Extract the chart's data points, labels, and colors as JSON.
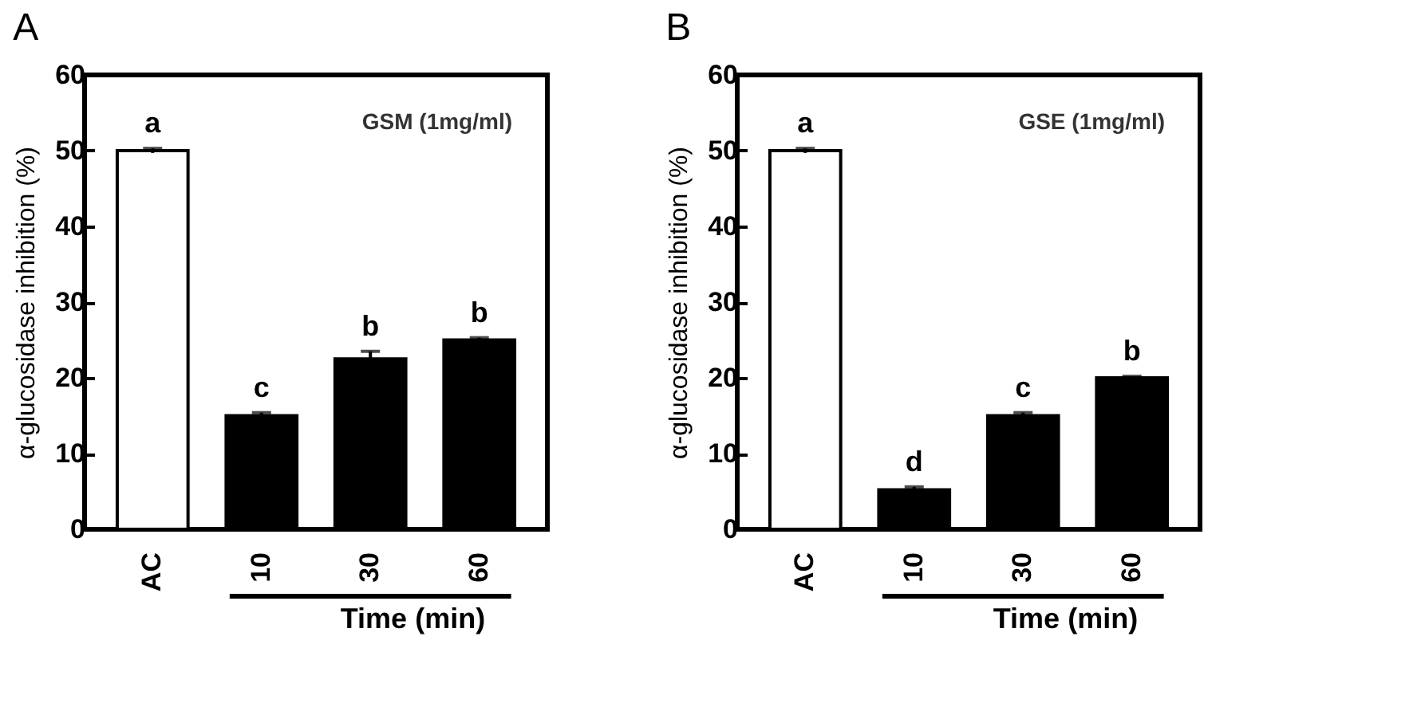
{
  "chart_data": [
    {
      "type": "bar",
      "title": "A",
      "ylabel": "α-glucosidase inhibition (%)",
      "xlabel": "Time (min)",
      "categories": [
        "AC",
        "10",
        "30",
        "60"
      ],
      "values": [
        50,
        15,
        22.5,
        25
      ],
      "errors": [
        0.3,
        0.4,
        1,
        0.3
      ],
      "colors": [
        "#ffffff",
        "#000000",
        "#000000",
        "#000000"
      ],
      "ylim": [
        0,
        60
      ],
      "yticks": [
        0,
        10,
        20,
        30,
        40,
        50,
        60
      ],
      "grid": false,
      "annotations": [
        {
          "text": "a",
          "x": "AC",
          "y": 50
        },
        {
          "text": "c",
          "x": "10",
          "y": 15
        },
        {
          "text": "b",
          "x": "30",
          "y": 22.5
        },
        {
          "text": "b",
          "x": "60",
          "y": 25
        },
        "GSM (1mg/ml)"
      ]
    },
    {
      "type": "bar",
      "title": "B",
      "ylabel": "α-glucosidase inhibition (%)",
      "xlabel": "Time (min)",
      "categories": [
        "AC",
        "10",
        "30",
        "60"
      ],
      "values": [
        50,
        5.2,
        15,
        20
      ],
      "errors": [
        0.3,
        0.4,
        0.4,
        0.2
      ],
      "colors": [
        "#ffffff",
        "#000000",
        "#000000",
        "#000000"
      ],
      "ylim": [
        0,
        60
      ],
      "yticks": [
        0,
        10,
        20,
        30,
        40,
        50,
        60
      ],
      "grid": false,
      "annotations": [
        {
          "text": "a",
          "x": "AC",
          "y": 50
        },
        {
          "text": "d",
          "x": "10",
          "y": 5.2
        },
        {
          "text": "c",
          "x": "30",
          "y": 15
        },
        {
          "text": "b",
          "x": "60",
          "y": 20
        },
        "GSE (1mg/ml)"
      ]
    }
  ]
}
